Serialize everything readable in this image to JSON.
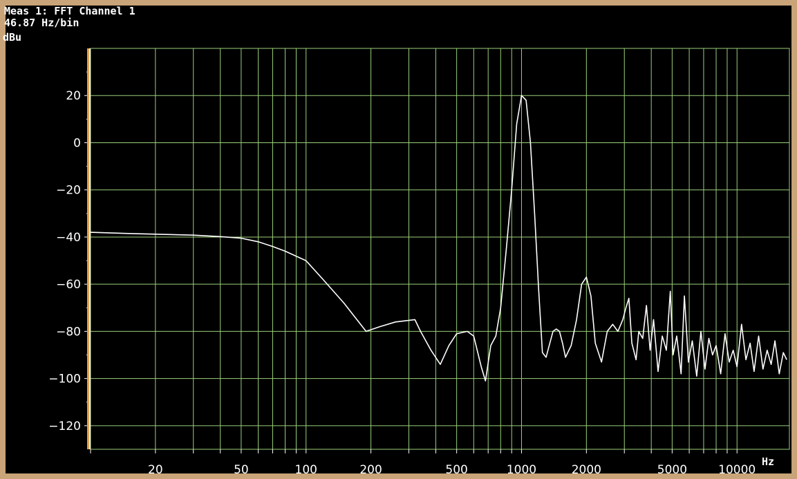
{
  "colors": {
    "background": "#000000",
    "frame": "#c9a478",
    "grid": "#9bd07a",
    "trace": "#ffffff",
    "left_axis_bar": "#e6a050"
  },
  "chart_data": {
    "type": "line",
    "title": "Meas 1: FFT Channel 1",
    "subtitle": "46.87 Hz/bin",
    "ylabel": "dBu",
    "xlabel": "Hz",
    "xscale": "log",
    "xlim": [
      10,
      17500
    ],
    "ylim": [
      -130,
      40
    ],
    "grid": true,
    "x_ticks": [
      20,
      50,
      100,
      200,
      500,
      1000,
      2000,
      5000,
      10000
    ],
    "y_ticks": [
      20,
      0,
      -20,
      -40,
      -60,
      -80,
      -100,
      -120
    ],
    "series": [
      {
        "x": [
          10,
          15,
          20,
          30,
          40,
          50,
          60,
          70,
          80,
          100,
          120,
          150,
          190,
          220,
          260,
          320,
          340,
          380,
          420,
          460,
          500,
          560,
          600,
          650,
          680,
          720,
          760,
          800,
          850,
          900,
          950,
          1000,
          1050,
          1100,
          1150,
          1200,
          1250,
          1300,
          1400,
          1450,
          1500,
          1550,
          1600,
          1700,
          1800,
          1900,
          2000,
          2100,
          2200,
          2350,
          2500,
          2650,
          2800,
          2950,
          3050,
          3150,
          3250,
          3400,
          3500,
          3650,
          3800,
          3950,
          4100,
          4300,
          4500,
          4700,
          4900,
          5050,
          5250,
          5500,
          5700,
          5950,
          6200,
          6500,
          6800,
          7100,
          7400,
          7700,
          8000,
          8400,
          8800,
          9200,
          9600,
          10000,
          10500,
          11000,
          11500,
          12000,
          12600,
          13200,
          13800,
          14400,
          15000,
          15700,
          16400,
          17000
        ],
        "y": [
          -38,
          -38.5,
          -38.8,
          -39.2,
          -39.8,
          -40.5,
          -42,
          -44,
          -46,
          -50,
          -58,
          -68,
          -80,
          -78,
          -76,
          -75,
          -80,
          -88,
          -94,
          -86,
          -81,
          -80,
          -82,
          -95,
          -101,
          -86,
          -82,
          -70,
          -45,
          -20,
          8,
          20,
          18,
          0,
          -30,
          -62,
          -89,
          -91,
          -80,
          -79,
          -80,
          -85,
          -91,
          -86,
          -75,
          -60,
          -57,
          -65,
          -85,
          -93,
          -80,
          -77,
          -80,
          -75,
          -70,
          -66,
          -85,
          -92,
          -80,
          -83,
          -69,
          -88,
          -75,
          -97,
          -82,
          -88,
          -63,
          -90,
          -82,
          -98,
          -65,
          -93,
          -84,
          -99,
          -80,
          -96,
          -83,
          -90,
          -86,
          -98,
          -81,
          -93,
          -88,
          -95,
          -77,
          -92,
          -85,
          -97,
          -82,
          -96,
          -88,
          -94,
          -84,
          -98,
          -89,
          -92
        ]
      }
    ]
  }
}
